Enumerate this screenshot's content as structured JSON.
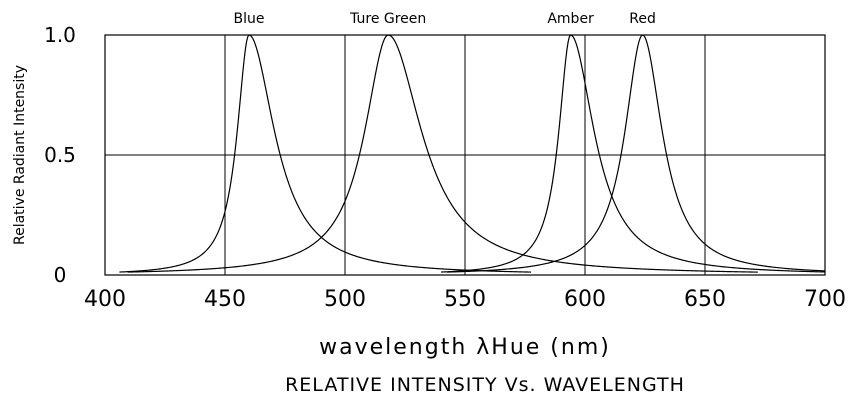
{
  "chart_data": {
    "type": "line",
    "title": "RELATIVE INTENSITY Vs. WAVELENGTH",
    "xlabel": "wavelength λHue (nm)",
    "ylabel": "Relative Radiant Intensity",
    "xlim": [
      400,
      700
    ],
    "ylim": [
      0,
      1.0
    ],
    "x_ticks": [
      "400",
      "450",
      "500",
      "550",
      "600",
      "650",
      "700"
    ],
    "y_ticks": [
      "0",
      "0.5",
      "1.0"
    ],
    "grid": true,
    "series": [
      {
        "name": "Blue",
        "peak": 460,
        "hwhm_left": 6,
        "hwhm_right": 13
      },
      {
        "name": "Ture Green",
        "peak": 518,
        "hwhm_left": 12,
        "hwhm_right": 17
      },
      {
        "name": "Amber",
        "peak": 594,
        "hwhm_left": 6,
        "hwhm_right": 12
      },
      {
        "name": "Red",
        "peak": 624,
        "hwhm_left": 9,
        "hwhm_right": 10
      }
    ]
  }
}
